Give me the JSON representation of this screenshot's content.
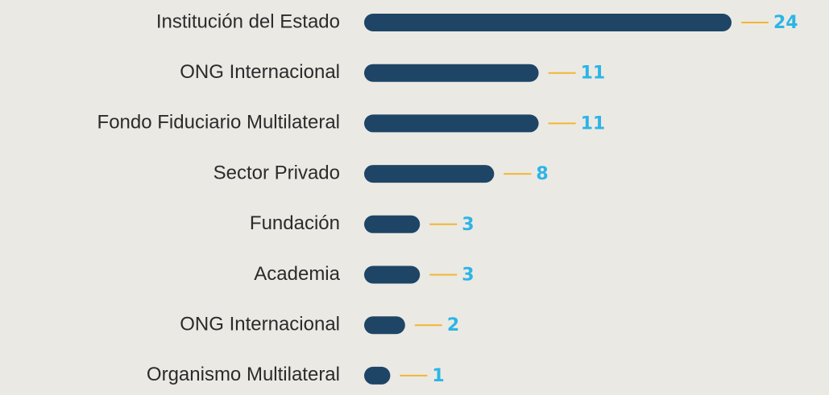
{
  "chart_data": {
    "type": "bar",
    "orientation": "horizontal",
    "categories": [
      "Institución del Estado",
      "ONG Internacional",
      "Fondo Fiduciario Multilateral",
      "Sector Privado",
      "Fundación",
      "Academia",
      "ONG Internacional",
      "Organismo Multilateral"
    ],
    "values": [
      24,
      11,
      11,
      8,
      3,
      3,
      2,
      1
    ],
    "color": "#1e4566"
  }
}
